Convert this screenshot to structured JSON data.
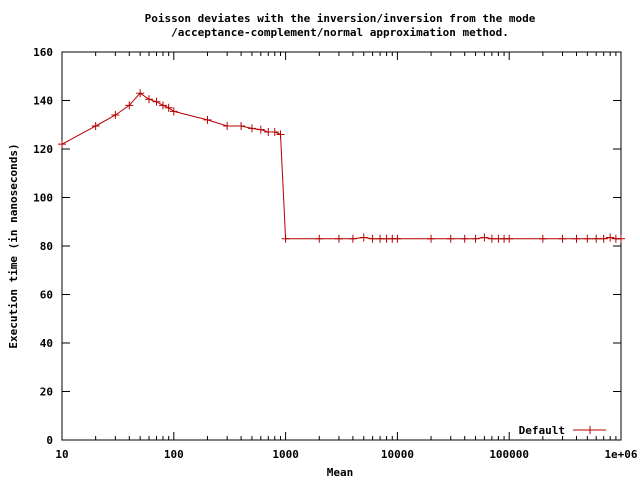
{
  "chart_data": {
    "type": "line",
    "title": "Poisson deviates with the inversion/inversion from the mode",
    "subtitle": "/acceptance-complement/normal approximation method.",
    "xlabel": "Mean",
    "ylabel": "Execution time (in nanoseconds)",
    "xscale": "log",
    "xlim": [
      10,
      1000000
    ],
    "ylim": [
      0,
      160
    ],
    "xticks": [
      10,
      100,
      1000,
      10000,
      100000,
      1000000
    ],
    "xtick_labels": [
      "10",
      "100",
      "1000",
      "10000",
      "100000",
      "1e+06"
    ],
    "yticks": [
      0,
      20,
      40,
      60,
      80,
      100,
      120,
      140,
      160
    ],
    "ytick_labels": [
      "0",
      "20",
      "40",
      "60",
      "80",
      "100",
      "120",
      "140",
      "160"
    ],
    "grid": false,
    "legend": "bottom-right",
    "series": [
      {
        "name": "Default",
        "color": "#b40000",
        "x": [
          10,
          20,
          30,
          40,
          50,
          60,
          70,
          80,
          90,
          100,
          200,
          300,
          400,
          500,
          600,
          700,
          800,
          900,
          1000,
          2000,
          3000,
          4000,
          5000,
          6000,
          7000,
          8000,
          9000,
          10000,
          20000,
          30000,
          40000,
          50000,
          60000,
          70000,
          80000,
          90000,
          100000,
          200000,
          300000,
          400000,
          500000,
          600000,
          700000,
          800000,
          900000,
          1000000
        ],
        "y": [
          122,
          129.5,
          134,
          138,
          143,
          140.5,
          139.5,
          138,
          137,
          135.5,
          132,
          129.5,
          129.5,
          128.5,
          128,
          127,
          127,
          126,
          83,
          83,
          83,
          83,
          83.5,
          83,
          83,
          83,
          83,
          83,
          83,
          83,
          83,
          83,
          83.5,
          83,
          83,
          83,
          83,
          83,
          83,
          83,
          83,
          83,
          83,
          83.5,
          83,
          83
        ]
      }
    ]
  }
}
